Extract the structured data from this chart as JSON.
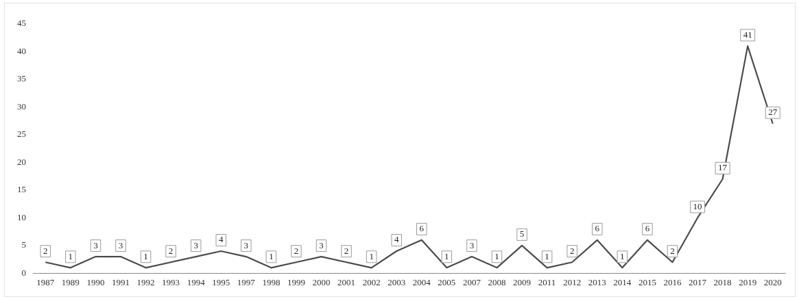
{
  "chart_data": {
    "type": "line",
    "categories": [
      "1987",
      "1989",
      "1990",
      "1991",
      "1992",
      "1993",
      "1994",
      "1995",
      "1997",
      "1998",
      "1999",
      "2000",
      "2001",
      "2002",
      "2003",
      "2004",
      "2005",
      "2007",
      "2008",
      "2009",
      "2011",
      "2012",
      "2013",
      "2014",
      "2015",
      "2016",
      "2017",
      "2018",
      "2019",
      "2020"
    ],
    "series": [
      {
        "color": "#4a4a4a",
        "values": [
          2,
          1,
          3,
          3,
          1,
          2,
          3,
          4,
          3,
          1,
          2,
          3,
          2,
          1,
          4,
          6,
          1,
          3,
          1,
          5,
          1,
          2,
          6,
          1,
          6,
          2,
          10,
          17,
          41,
          27
        ]
      }
    ],
    "ylim": [
      0,
      45
    ],
    "yticks": [
      0,
      5,
      10,
      15,
      20,
      25,
      30,
      35,
      40,
      45
    ],
    "grid": false,
    "legend": false,
    "marker": "none",
    "line_style": "solid",
    "data_labels": true
  }
}
